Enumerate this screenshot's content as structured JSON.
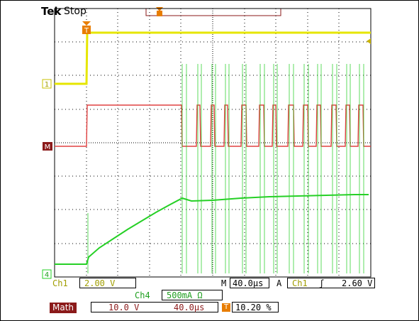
{
  "header": {
    "brand": "Tek",
    "state": "Stop",
    "trigger_marker": "T"
  },
  "markers": {
    "ch1": "1",
    "math": "M",
    "ch4": "4",
    "trigger": "T"
  },
  "status": {
    "ch1_label": "Ch1",
    "ch1_scale": "2.00 V",
    "ch4_label": "Ch4",
    "ch4_scale": "500mA Ω",
    "math_label": "Math",
    "math_scale": "10.0 V",
    "math_time": "40.0µs",
    "timebase_label": "M",
    "timebase": "40.0µs",
    "trigger_mode": "A",
    "trigger_source": "Ch1",
    "trigger_slope": "ʃ",
    "trigger_level": "2.60 V",
    "trigger_pos": "10.20 %"
  },
  "colors": {
    "ch1": "#e6e600",
    "math": "#e04040",
    "ch4": "#26d026",
    "grid": "#000000",
    "trigger": "#e87d00"
  }
}
